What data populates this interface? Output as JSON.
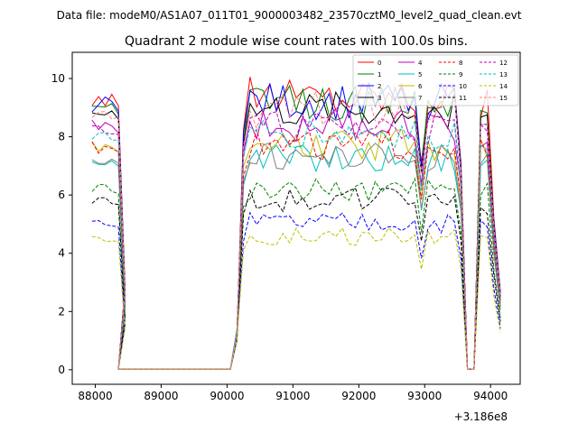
{
  "header": {
    "suptitle": "Data file: modeM0/AS1A07_011T01_9000003482_23570cztM0_level2_quad_clean.evt"
  },
  "chart_data": {
    "type": "line",
    "title": "Quadrant 2 module wise count rates with 100.0s bins.",
    "xlabel": "",
    "ylabel": "",
    "x_offset_label": "+3.186e8",
    "xlim": [
      87650,
      94450
    ],
    "ylim": [
      -0.5,
      10.9
    ],
    "xticks": [
      88000,
      89000,
      90000,
      91000,
      92000,
      93000,
      94000
    ],
    "xtick_labels": [
      "88000",
      "89000",
      "90000",
      "91000",
      "92000",
      "93000",
      "94000"
    ],
    "yticks": [
      0,
      2,
      4,
      6,
      8,
      10
    ],
    "ytick_labels": [
      "0",
      "2",
      "4",
      "6",
      "8",
      "10"
    ],
    "grid": false,
    "legend_position": "top-right",
    "legend_columns": 4,
    "segments": [
      {
        "start": 87950,
        "n": 6
      },
      {
        "start": 88350,
        "n": 18
      },
      {
        "start": 90150,
        "n": 35
      },
      {
        "start": 93650,
        "n": 6
      }
    ],
    "series": [
      {
        "name": "0",
        "color": "#ff0000",
        "dash": false,
        "level": 9.5
      },
      {
        "name": "1",
        "color": "#008000",
        "dash": false,
        "level": 9.2
      },
      {
        "name": "2",
        "color": "#0000ff",
        "dash": false,
        "level": 9.3
      },
      {
        "name": "3",
        "color": "#000000",
        "dash": false,
        "level": 9.0
      },
      {
        "name": "4",
        "color": "#bf00bf",
        "dash": false,
        "level": 8.5
      },
      {
        "name": "5",
        "color": "#00bfbf",
        "dash": false,
        "level": 7.3
      },
      {
        "name": "6",
        "color": "#bfbf00",
        "dash": false,
        "level": 7.8
      },
      {
        "name": "7",
        "color": "#808080",
        "dash": false,
        "level": 7.4
      },
      {
        "name": "8",
        "color": "#ff0000",
        "dash": true,
        "level": 7.8
      },
      {
        "name": "9",
        "color": "#008000",
        "dash": true,
        "level": 6.3
      },
      {
        "name": "10",
        "color": "#0000ff",
        "dash": true,
        "level": 5.1
      },
      {
        "name": "11",
        "color": "#000000",
        "dash": true,
        "level": 5.9
      },
      {
        "name": "12",
        "color": "#bf00bf",
        "dash": true,
        "level": 8.4
      },
      {
        "name": "13",
        "color": "#00bfbf",
        "dash": true,
        "level": 8.2
      },
      {
        "name": "14",
        "color": "#bfbf00",
        "dash": true,
        "level": 4.6
      },
      {
        "name": "15",
        "color": "#ff8080",
        "dash": true,
        "level": 9.0
      }
    ]
  }
}
